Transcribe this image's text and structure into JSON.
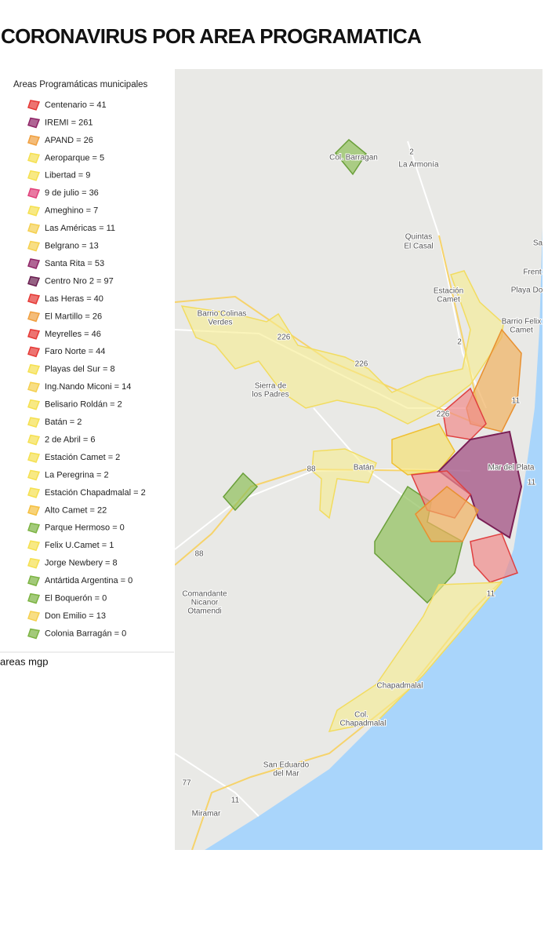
{
  "header": {
    "title": "CORONAVIRUS POR AREA PROGRAMATICA"
  },
  "legend": {
    "title": "Areas Programáticas municipales",
    "items": [
      {
        "label": "Centenario = 41",
        "color": "#e53935"
      },
      {
        "label": "IREMI = 261",
        "color": "#8e2466"
      },
      {
        "label": "APAND = 26",
        "color": "#f0a040"
      },
      {
        "label": "Aeroparque = 5",
        "color": "#f5e050"
      },
      {
        "label": "Libertad = 9",
        "color": "#f5e050"
      },
      {
        "label": "9 de julio = 36",
        "color": "#e0407a"
      },
      {
        "label": "Ameghino = 7",
        "color": "#f5e050"
      },
      {
        "label": "Las Américas = 11",
        "color": "#f5d050"
      },
      {
        "label": "Belgrano = 13",
        "color": "#f5d050"
      },
      {
        "label": "Santa Rita = 53",
        "color": "#8e2466"
      },
      {
        "label": "Centro Nro 2 = 97",
        "color": "#6a1f50"
      },
      {
        "label": "Las Heras = 40",
        "color": "#e53935"
      },
      {
        "label": "El Martillo = 26",
        "color": "#f0a040"
      },
      {
        "label": "Meyrelles = 46",
        "color": "#e53935"
      },
      {
        "label": "Faro Norte = 44",
        "color": "#e53935"
      },
      {
        "label": "Playas del Sur = 8",
        "color": "#f5e050"
      },
      {
        "label": "Ing.Nando Miconi = 14",
        "color": "#f5d050"
      },
      {
        "label": "Belisario Roldán = 2",
        "color": "#f5e050"
      },
      {
        "label": "Batán = 2",
        "color": "#f5e050"
      },
      {
        "label": "2 de Abril = 6",
        "color": "#f5e050"
      },
      {
        "label": "Estación Camet = 2",
        "color": "#f5e050"
      },
      {
        "label": "La Peregrina = 2",
        "color": "#f5e050"
      },
      {
        "label": "Estación Chapadmalal = 2",
        "color": "#f5e050"
      },
      {
        "label": "Alto Camet = 22",
        "color": "#f5c040"
      },
      {
        "label": "Parque Hermoso = 0",
        "color": "#7cb342"
      },
      {
        "label": "Felix U.Camet = 1",
        "color": "#f5e050"
      },
      {
        "label": "Jorge Newbery = 8",
        "color": "#f5e050"
      },
      {
        "label": "Antártida Argentina = 0",
        "color": "#7cb342"
      },
      {
        "label": "El Boquerón = 0",
        "color": "#7cb342"
      },
      {
        "label": "Don Emilio = 13",
        "color": "#f5d050"
      },
      {
        "label": "Colonia Barragán = 0",
        "color": "#7cb342"
      }
    ]
  },
  "layer_name": "areas mgp",
  "map": {
    "labels": [
      "Col. Barragan",
      "2",
      "La Armonía",
      "Quintas",
      "El Casal",
      "Sa",
      "Frent",
      "Playa Do",
      "Estación",
      "Camet",
      "Barrio Colinas",
      "Verdes",
      "Barrio Felix",
      "Camet",
      "226",
      "226",
      "2",
      "Sierra de",
      "los Padres",
      "11",
      "226",
      "Mar del Plata",
      "88",
      "Batán",
      "11",
      "88",
      "Comandante",
      "Nicanor",
      "Otamendi",
      "11",
      "Chapadmalal",
      "Col.",
      "Chapadmalal",
      "San Eduardo",
      "del Mar",
      "77",
      "11",
      "Miramar"
    ]
  }
}
